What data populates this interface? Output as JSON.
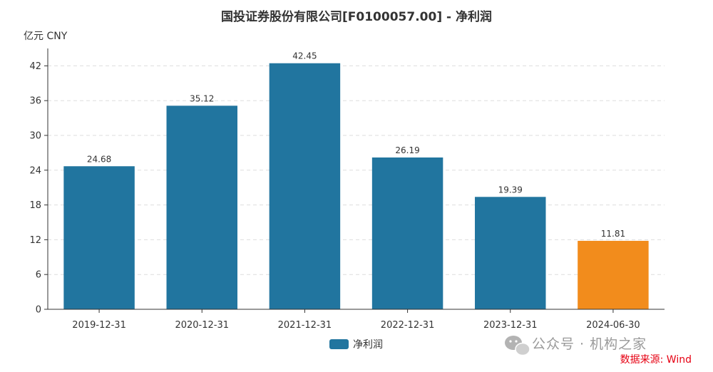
{
  "chart_data": {
    "type": "bar",
    "title": "国投证券股份有限公司[F0100057.00] - 净利润",
    "unit_label": "亿元  CNY",
    "categories": [
      "2019-12-31",
      "2020-12-31",
      "2021-12-31",
      "2022-12-31",
      "2023-12-31",
      "2024-06-30"
    ],
    "series": [
      {
        "name": "净利润",
        "values": [
          24.68,
          35.12,
          42.45,
          26.19,
          19.39,
          11.81
        ],
        "color": "#21759f"
      }
    ],
    "data_labels": [
      "24.68",
      "35.12",
      "42.45",
      "26.19",
      "19.39",
      "11.81"
    ],
    "highlight": {
      "index": 5,
      "color": "#f28c1c"
    },
    "yticks": [
      "0",
      "6",
      "12",
      "18",
      "24",
      "30",
      "36",
      "42"
    ],
    "ylim": [
      0,
      45
    ],
    "grid": true,
    "legend_position": "bottom-center"
  },
  "source_note": "数据来源: Wind",
  "watermark": {
    "text": "公众号 · 机构之家",
    "icon": "wechat-icon"
  }
}
